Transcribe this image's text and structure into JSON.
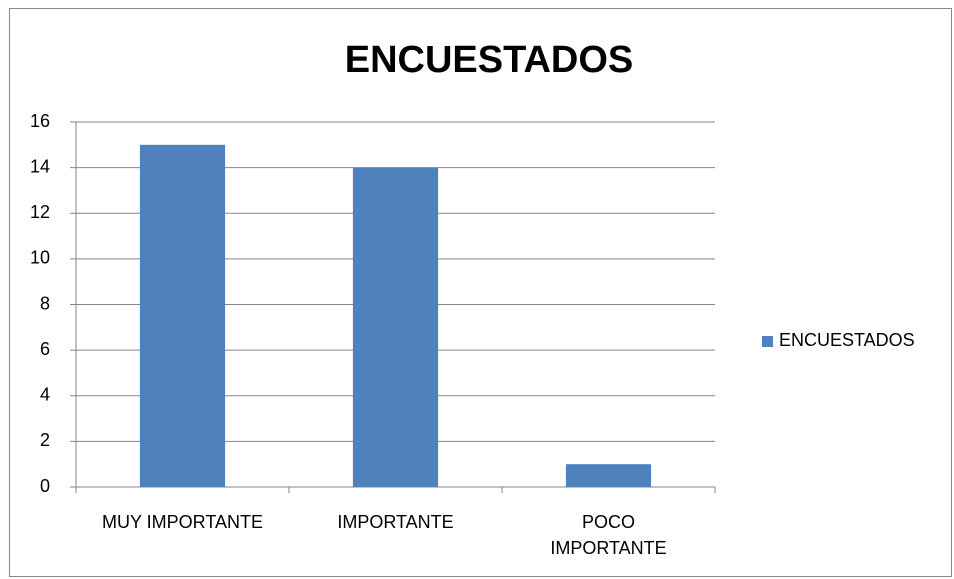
{
  "chart_data": {
    "type": "bar",
    "title": "ENCUESTADOS",
    "categories": [
      "MUY IMPORTANTE",
      "IMPORTANTE",
      "POCO IMPORTANTE"
    ],
    "series": [
      {
        "name": "ENCUESTADOS",
        "color": "#4f81bd",
        "values": [
          15,
          14,
          1
        ]
      }
    ],
    "ylim": [
      0,
      16
    ],
    "yticks": [
      0,
      2,
      4,
      6,
      8,
      10,
      12,
      14,
      16
    ],
    "grid": true,
    "legend": "right"
  }
}
